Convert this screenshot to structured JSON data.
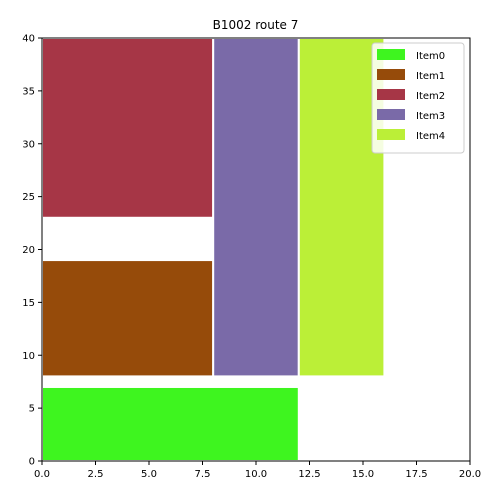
{
  "chart_data": {
    "type": "bar",
    "title": "B1002 route 7",
    "xlabel": "",
    "ylabel": "",
    "xlim": [
      0,
      20
    ],
    "ylim": [
      0,
      40
    ],
    "x_ticks": [
      "0.0",
      "2.5",
      "5.0",
      "7.5",
      "10.0",
      "12.5",
      "15.0",
      "17.5",
      "20.0"
    ],
    "y_ticks": [
      "0",
      "5",
      "10",
      "15",
      "20",
      "25",
      "30",
      "35",
      "40"
    ],
    "grid": false,
    "legend_position": "top-right",
    "series": [
      {
        "name": "Item0",
        "color": "#3ef51f",
        "x0": 0,
        "x1": 12,
        "y0": 0,
        "y1": 7
      },
      {
        "name": "Item1",
        "color": "#964b0a",
        "x0": 0,
        "x1": 8,
        "y0": 8,
        "y1": 19
      },
      {
        "name": "Item2",
        "color": "#a63646",
        "x0": 0,
        "x1": 8,
        "y0": 23,
        "y1": 40
      },
      {
        "name": "Item3",
        "color": "#7a6aa8",
        "x0": 8,
        "x1": 12,
        "y0": 8,
        "y1": 40
      },
      {
        "name": "Item4",
        "color": "#bbef37",
        "x0": 12,
        "x1": 16,
        "y0": 8,
        "y1": 40
      }
    ]
  }
}
